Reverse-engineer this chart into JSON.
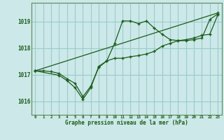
{
  "title": "Graphe pression niveau de la mer (hPa)",
  "bg_color": "#cce8e8",
  "grid_color": "#99cccc",
  "line_color": "#1a5c1a",
  "xlim": [
    -0.5,
    23.5
  ],
  "ylim": [
    1015.5,
    1019.7
  ],
  "yticks": [
    1016,
    1017,
    1018,
    1019
  ],
  "xticks": [
    0,
    1,
    2,
    3,
    4,
    5,
    6,
    7,
    8,
    9,
    10,
    11,
    12,
    13,
    14,
    15,
    16,
    17,
    18,
    19,
    20,
    21,
    22,
    23
  ],
  "series1_x": [
    0,
    1,
    2,
    3,
    4,
    5,
    6,
    7,
    8,
    9,
    10,
    11,
    12,
    13,
    14,
    15,
    16,
    17,
    18,
    19,
    20,
    21,
    22,
    23
  ],
  "series1_y": [
    1017.15,
    1017.15,
    1017.12,
    1017.05,
    1016.85,
    1016.68,
    1016.18,
    1016.58,
    1017.28,
    1017.52,
    1017.62,
    1017.62,
    1017.68,
    1017.72,
    1017.78,
    1017.88,
    1018.08,
    1018.18,
    1018.28,
    1018.32,
    1018.38,
    1018.48,
    1018.52,
    1019.25
  ],
  "series2_x": [
    0,
    3,
    4,
    5,
    6,
    7,
    8,
    9,
    10,
    11,
    12,
    13,
    14,
    15,
    16,
    17,
    18,
    19,
    20,
    21,
    22,
    23
  ],
  "series2_y": [
    1017.15,
    1016.98,
    1016.78,
    1016.52,
    1016.08,
    1016.52,
    1017.32,
    1017.52,
    1018.18,
    1019.02,
    1019.02,
    1018.92,
    1019.02,
    1018.75,
    1018.52,
    1018.32,
    1018.28,
    1018.28,
    1018.32,
    1018.38,
    1019.08,
    1019.28
  ],
  "series3_x": [
    0,
    23
  ],
  "series3_y": [
    1017.15,
    1019.32
  ]
}
